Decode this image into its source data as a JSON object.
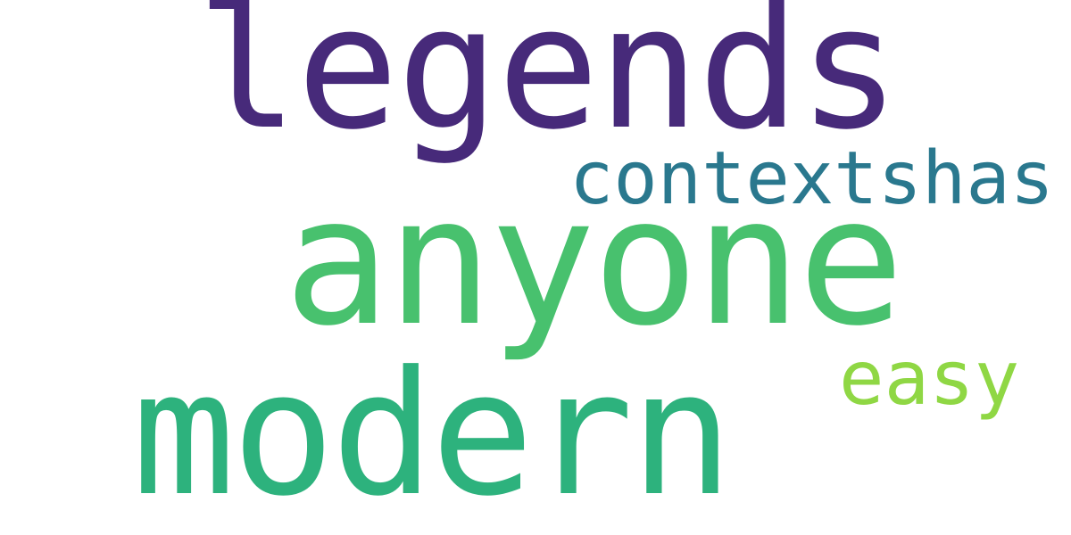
{
  "words": {
    "legends": {
      "text": "legends",
      "color": "#472a7a"
    },
    "contextshas": {
      "text": "contextshas",
      "color": "#2a788e"
    },
    "anyone": {
      "text": "anyone",
      "color": "#48c16e"
    },
    "easy": {
      "text": "easy",
      "color": "#8fd744"
    },
    "modern": {
      "text": "modern",
      "color": "#2db27d"
    }
  }
}
